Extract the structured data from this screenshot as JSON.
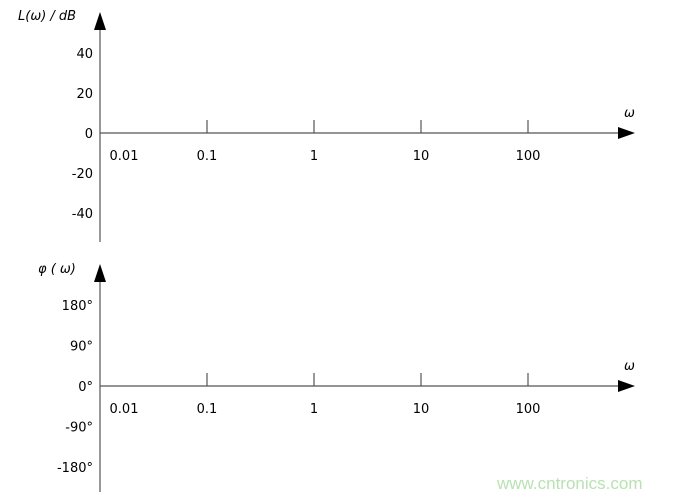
{
  "chart_data": [
    {
      "type": "line",
      "title": "",
      "ylabel": "L(ω) / dB",
      "xlabel": "ω",
      "x_scale": "log",
      "x_ticks": [
        "0.01",
        "0.1",
        "1",
        "10",
        "100"
      ],
      "y_ticks": [
        "40",
        "20",
        "0",
        "-20",
        "-40"
      ],
      "y_tick_values": [
        40,
        20,
        0,
        -20,
        -40
      ],
      "series": [],
      "grid": false
    },
    {
      "type": "line",
      "title": "",
      "ylabel": "φ ( ω)",
      "xlabel": "ω",
      "x_scale": "log",
      "x_ticks": [
        "0.01",
        "0.1",
        "1",
        "10",
        "100"
      ],
      "y_ticks": [
        "180°",
        "90°",
        "0°",
        "-90°",
        "-180°"
      ],
      "y_tick_values": [
        180,
        90,
        0,
        -90,
        -180
      ],
      "series": [],
      "grid": false
    }
  ],
  "watermark": "www.cntronics.com",
  "colors": {
    "axis": "#555555",
    "arrow": "#000000",
    "watermark": "#b9e2b2"
  }
}
